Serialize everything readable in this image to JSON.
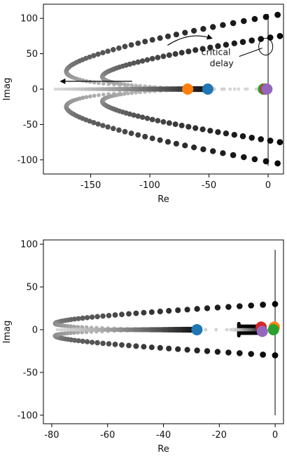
{
  "chart_data": [
    {
      "type": "scatter",
      "xlabel": "Re",
      "ylabel": "Imag",
      "xlim": [
        -190,
        13
      ],
      "ylim": [
        -120,
        120
      ],
      "xticks": [
        -150,
        -100,
        -50,
        0
      ],
      "yticks": [
        -100,
        -50,
        0,
        50,
        100
      ],
      "vertical_line_x": 0,
      "annotation": {
        "text_lines": [
          "critical",
          "delay"
        ],
        "x": -2,
        "y": 60
      },
      "trajectories": [
        {
          "from": [
            -10,
            0
          ],
          "control": [
            -340,
            0
          ],
          "to": [
            8,
            105
          ],
          "note": "outer branch upper"
        },
        {
          "from": [
            -10,
            0
          ],
          "control": [
            -340,
            0
          ],
          "to": [
            8,
            -105
          ],
          "note": "outer branch lower"
        },
        {
          "from": [
            -10,
            0
          ],
          "control": [
            -280,
            0
          ],
          "to": [
            10,
            75
          ],
          "note": "inner branch upper"
        },
        {
          "from": [
            -10,
            0
          ],
          "control": [
            -280,
            0
          ],
          "to": [
            10,
            -75
          ],
          "note": "inner branch lower"
        },
        {
          "from": [
            -50,
            0
          ],
          "to": [
            -180,
            0
          ],
          "note": "real-axis branch"
        }
      ],
      "markers": [
        {
          "color": "#ff7f0e",
          "x": -68,
          "y": 0
        },
        {
          "color": "#1f77b4",
          "x": -51,
          "y": 0
        },
        {
          "color": "#2ca02c",
          "x": -4,
          "y": 0
        },
        {
          "color": "#d62728",
          "x": -2,
          "y": 0
        },
        {
          "color": "#9467bd",
          "x": -1,
          "y": 0
        }
      ],
      "arrows": [
        {
          "from": [
            -85,
            62
          ],
          "to": [
            -48,
            72
          ],
          "curved": true
        },
        {
          "from": [
            -115,
            11
          ],
          "to": [
            -175,
            11
          ],
          "curved": false
        }
      ]
    },
    {
      "type": "scatter",
      "xlabel": "Re",
      "ylabel": "Imag",
      "xlim": [
        -83,
        3
      ],
      "ylim": [
        -110,
        105
      ],
      "xticks": [
        -80,
        -60,
        -40,
        -20,
        0
      ],
      "yticks": [
        -100,
        -50,
        0,
        50,
        100
      ],
      "vertical_line_x": 0,
      "trajectories": [
        {
          "from": [
            -5,
            0
          ],
          "control": [
            -155,
            0
          ],
          "to": [
            0,
            30
          ],
          "note": "upper branch"
        },
        {
          "from": [
            -5,
            0
          ],
          "control": [
            -155,
            0
          ],
          "to": [
            0,
            -30
          ],
          "note": "lower branch"
        },
        {
          "from": [
            -28,
            0
          ],
          "to": [
            -78,
            0
          ],
          "note": "real-axis branch"
        },
        {
          "from": [
            -5,
            0
          ],
          "to": [
            -16,
            0
          ],
          "note": "short real-axis branch"
        }
      ],
      "markers": [
        {
          "color": "#ff7f0e",
          "x": -0.3,
          "y": 3
        },
        {
          "color": "#1f77b4",
          "x": -28,
          "y": 0
        },
        {
          "color": "#2ca02c",
          "x": -0.6,
          "y": 0
        },
        {
          "color": "#d62728",
          "x": -5,
          "y": 3
        },
        {
          "color": "#9467bd",
          "x": -4.6,
          "y": -2
        }
      ],
      "hooks": [
        {
          "from": [
            -5,
            4
          ],
          "corner": [
            -13,
            4
          ],
          "to": [
            -13,
            7
          ]
        },
        {
          "from": [
            -5,
            -4
          ],
          "corner": [
            -13,
            -4
          ],
          "to": [
            -13,
            -7
          ]
        }
      ]
    }
  ]
}
